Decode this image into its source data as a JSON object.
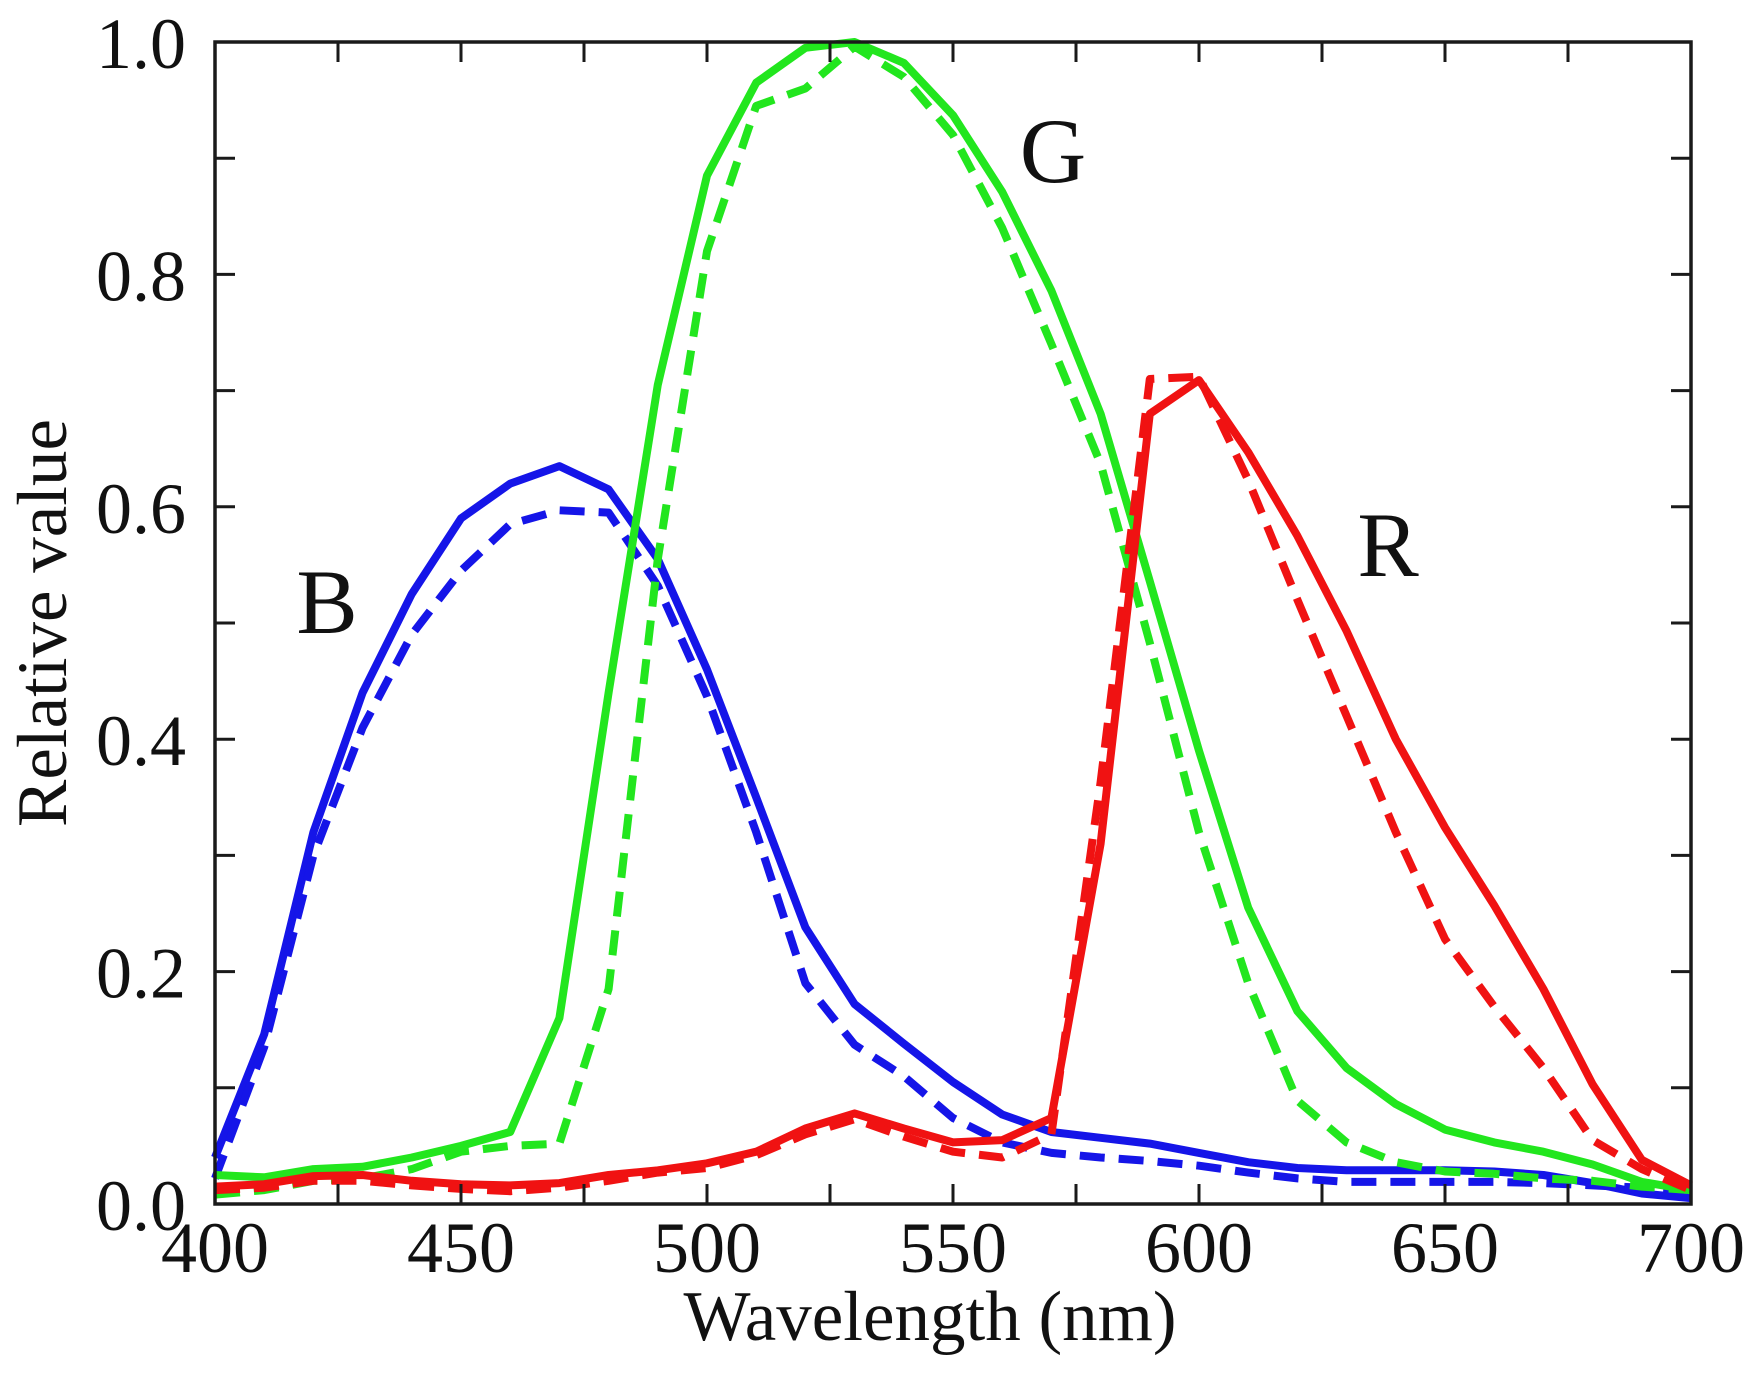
{
  "chart_data": {
    "type": "line",
    "xlabel": "Wavelength (nm)",
    "ylabel": "Relative value",
    "xlim": [
      400,
      700
    ],
    "ylim": [
      0,
      1.0
    ],
    "grid": false,
    "xticks": [
      400,
      450,
      500,
      550,
      600,
      650,
      700
    ],
    "xtick_labels": [
      "400",
      "450",
      "500",
      "550",
      "600",
      "650",
      "700"
    ],
    "yticks": [
      0,
      0.2,
      0.4,
      0.6,
      0.8,
      1.0
    ],
    "ytick_labels": [
      "0.0",
      "0.2",
      "0.4",
      "0.6",
      "0.8",
      "1.0"
    ],
    "x": [
      400,
      410,
      420,
      430,
      440,
      450,
      460,
      470,
      480,
      490,
      500,
      510,
      520,
      530,
      540,
      550,
      560,
      570,
      580,
      590,
      600,
      610,
      620,
      630,
      640,
      650,
      660,
      670,
      680,
      690,
      700
    ],
    "series": [
      {
        "name": "B",
        "color": "#1515e8",
        "solid": [
          0.04,
          0.146,
          0.32,
          0.44,
          0.525,
          0.59,
          0.62,
          0.635,
          0.615,
          0.555,
          0.46,
          0.35,
          0.238,
          0.172,
          0.138,
          0.105,
          0.077,
          0.062,
          0.057,
          0.052,
          0.044,
          0.036,
          0.031,
          0.029,
          0.029,
          0.029,
          0.028,
          0.025,
          0.018,
          0.009,
          0.005
        ],
        "dashed": [
          0.022,
          0.135,
          0.3,
          0.41,
          0.49,
          0.545,
          0.585,
          0.597,
          0.595,
          0.532,
          0.437,
          0.32,
          0.19,
          0.137,
          0.11,
          0.074,
          0.053,
          0.044,
          0.04,
          0.037,
          0.033,
          0.027,
          0.022,
          0.019,
          0.019,
          0.019,
          0.019,
          0.018,
          0.016,
          0.014,
          0.012
        ]
      },
      {
        "name": "G",
        "color": "#22e61e",
        "solid": [
          0.025,
          0.023,
          0.03,
          0.032,
          0.04,
          0.05,
          0.062,
          0.16,
          0.44,
          0.705,
          0.885,
          0.965,
          0.995,
          1.0,
          0.982,
          0.937,
          0.871,
          0.786,
          0.68,
          0.536,
          0.39,
          0.255,
          0.166,
          0.117,
          0.086,
          0.064,
          0.053,
          0.045,
          0.034,
          0.019,
          0.012
        ],
        "dashed": [
          0.008,
          0.012,
          0.02,
          0.022,
          0.03,
          0.045,
          0.05,
          0.052,
          0.185,
          0.555,
          0.82,
          0.945,
          0.96,
          0.996,
          0.97,
          0.92,
          0.84,
          0.74,
          0.637,
          0.483,
          0.32,
          0.19,
          0.089,
          0.053,
          0.036,
          0.028,
          0.026,
          0.022,
          0.02,
          0.015,
          0.012
        ]
      },
      {
        "name": "R",
        "color": "#f01212",
        "solid": [
          0.015,
          0.017,
          0.024,
          0.025,
          0.02,
          0.017,
          0.016,
          0.018,
          0.025,
          0.029,
          0.035,
          0.045,
          0.065,
          0.078,
          0.065,
          0.053,
          0.055,
          0.074,
          0.31,
          0.68,
          0.709,
          0.647,
          0.575,
          0.493,
          0.4,
          0.324,
          0.257,
          0.185,
          0.103,
          0.038,
          0.016
        ],
        "dashed": [
          0.012,
          0.014,
          0.02,
          0.02,
          0.016,
          0.013,
          0.011,
          0.014,
          0.02,
          0.027,
          0.031,
          0.042,
          0.06,
          0.073,
          0.058,
          0.045,
          0.04,
          0.06,
          0.363,
          0.71,
          0.712,
          0.623,
          0.52,
          0.42,
          0.32,
          0.228,
          0.17,
          0.117,
          0.055,
          0.03,
          0.012
        ]
      }
    ]
  }
}
